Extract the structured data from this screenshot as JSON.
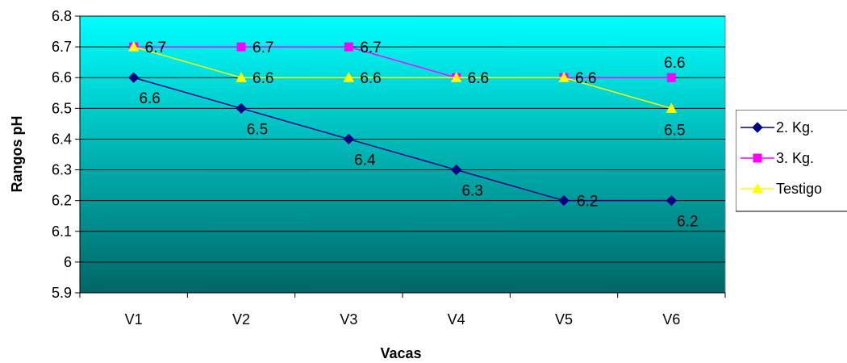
{
  "chart_data": {
    "type": "line",
    "categories": [
      "V1",
      "V2",
      "V3",
      "V4",
      "V5",
      "V6"
    ],
    "xlabel": "Vacas",
    "ylabel": "Rangos pH",
    "ylim": [
      5.9,
      6.8
    ],
    "yticks": [
      "6.8",
      "6.7",
      "6.6",
      "6.5",
      "6.4",
      "6.3",
      "6.2",
      "6.1",
      "6",
      "5.9"
    ],
    "grid": true,
    "legend_position": "right",
    "background": {
      "top_color": "#00FFFF",
      "bottom_color": "#006666"
    },
    "series": [
      {
        "name": "2. Kg.",
        "values": [
          6.6,
          6.5,
          6.4,
          6.3,
          6.2,
          6.2
        ],
        "labels": [
          "6.6",
          "6.5",
          "6.4",
          "6.3",
          "6.2",
          "6.2"
        ],
        "color": "#000080",
        "marker": "diamond"
      },
      {
        "name": "3. Kg.",
        "values": [
          6.7,
          6.7,
          6.7,
          6.6,
          6.6,
          6.6
        ],
        "labels": [
          "6.7",
          "6.7",
          "6.7",
          "6.6",
          "6.6",
          "6.6"
        ],
        "color": "#FF00FF",
        "marker": "square"
      },
      {
        "name": "Testigo",
        "values": [
          6.7,
          6.6,
          6.6,
          6.6,
          6.6,
          6.5
        ],
        "labels": [
          "6.7",
          "6.6",
          "6.6",
          "6.6",
          "6.6",
          "6.5"
        ],
        "color": "#FFFF00",
        "marker": "triangle"
      }
    ]
  }
}
